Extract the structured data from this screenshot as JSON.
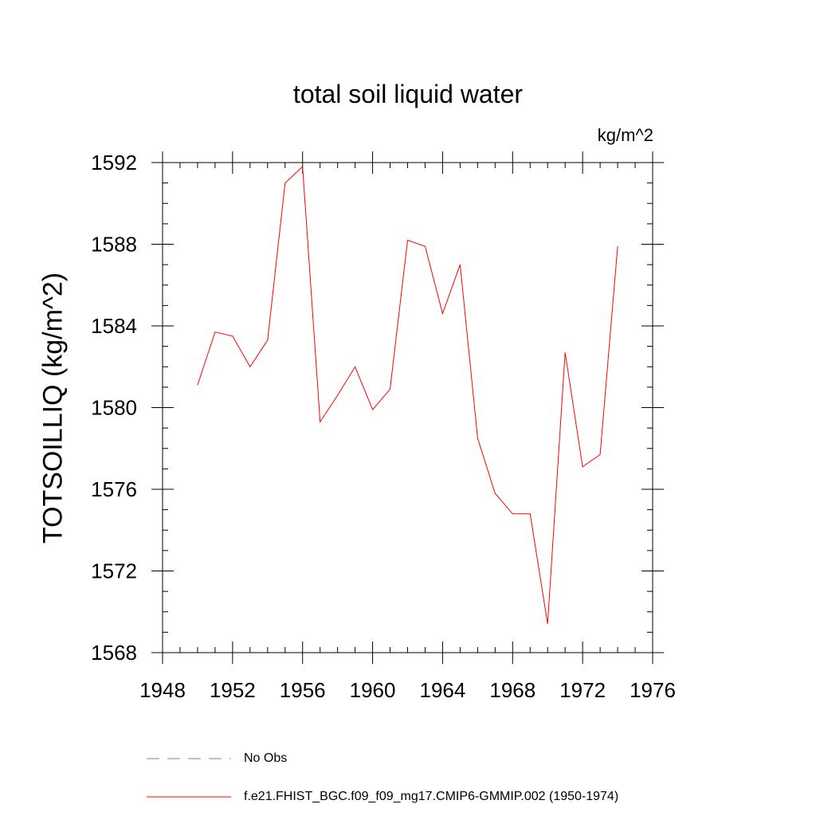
{
  "chart_data": {
    "type": "line",
    "title": "total soil liquid water",
    "units_label": "kg/m^2",
    "ylabel": "TOTSOILLIQ  (kg/m^2)",
    "xlabel": "",
    "xlim": [
      1948,
      1976
    ],
    "ylim": [
      1568,
      1592
    ],
    "x_ticks": [
      1948,
      1952,
      1956,
      1960,
      1964,
      1968,
      1972,
      1976
    ],
    "y_ticks": [
      1568,
      1572,
      1576,
      1580,
      1584,
      1588,
      1592
    ],
    "grid": false,
    "legend_position": "bottom",
    "series": [
      {
        "name": "No Obs",
        "color": "#7b7bd6",
        "style": "dashed",
        "x": [],
        "y": []
      },
      {
        "name": "f.e21.FHIST_BGC.f09_f09_mg17.CMIP6-GMMIP.002 (1950-1974)",
        "color": "#ff0000",
        "style": "solid",
        "x": [
          1950,
          1951,
          1952,
          1953,
          1954,
          1955,
          1956,
          1957,
          1958,
          1959,
          1960,
          1961,
          1962,
          1963,
          1964,
          1965,
          1966,
          1967,
          1968,
          1969,
          1970,
          1971,
          1972,
          1973,
          1974
        ],
        "y": [
          1581.1,
          1583.7,
          1583.5,
          1582.0,
          1583.3,
          1591.0,
          1591.8,
          1579.3,
          1580.6,
          1582.0,
          1579.9,
          1580.9,
          1588.2,
          1587.9,
          1584.6,
          1587.0,
          1578.5,
          1575.8,
          1574.8,
          1574.8,
          1569.4,
          1582.7,
          1577.1,
          1577.7,
          1587.9
        ]
      }
    ]
  }
}
